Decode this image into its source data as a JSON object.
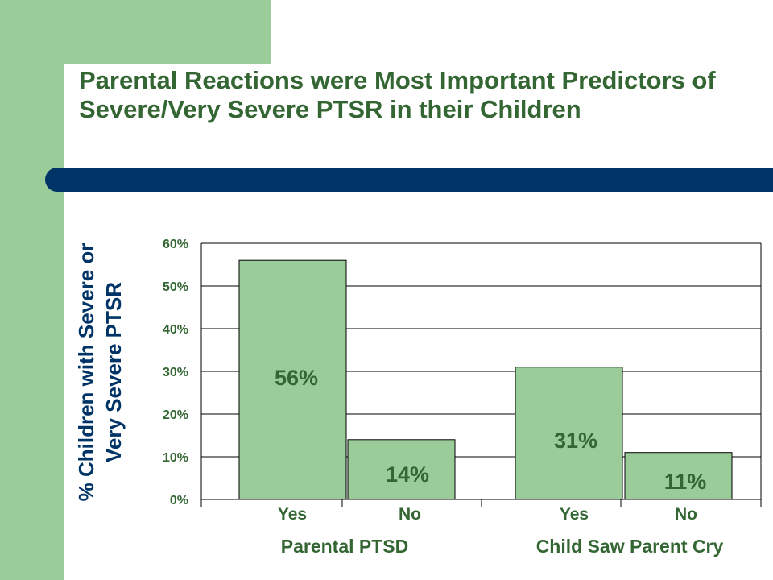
{
  "title": "Parental Reactions were Most Important Predictors of Severe/Very Severe PTSR in their Children",
  "colors": {
    "bar": "#99cc99",
    "text": "#336633",
    "accent": "#003366",
    "side": "#99cc99"
  },
  "chart_data": {
    "type": "bar",
    "ylabel": "% Children with Severe or\nVery Severe PTSR",
    "ylim": [
      0,
      60
    ],
    "yticks": [
      "0%",
      "10%",
      "20%",
      "30%",
      "40%",
      "50%",
      "60%"
    ],
    "grid": true,
    "categories": [
      "Yes",
      "No",
      "Yes",
      "No"
    ],
    "groups": [
      {
        "label": "Parental PTSD",
        "categories": [
          "Yes",
          "No"
        ]
      },
      {
        "label": "Child Saw Parent Cry",
        "categories": [
          "Yes",
          "No"
        ]
      }
    ],
    "values": [
      56,
      14,
      31,
      11
    ],
    "value_labels": [
      "56%",
      "14%",
      "31%",
      "11%"
    ]
  }
}
